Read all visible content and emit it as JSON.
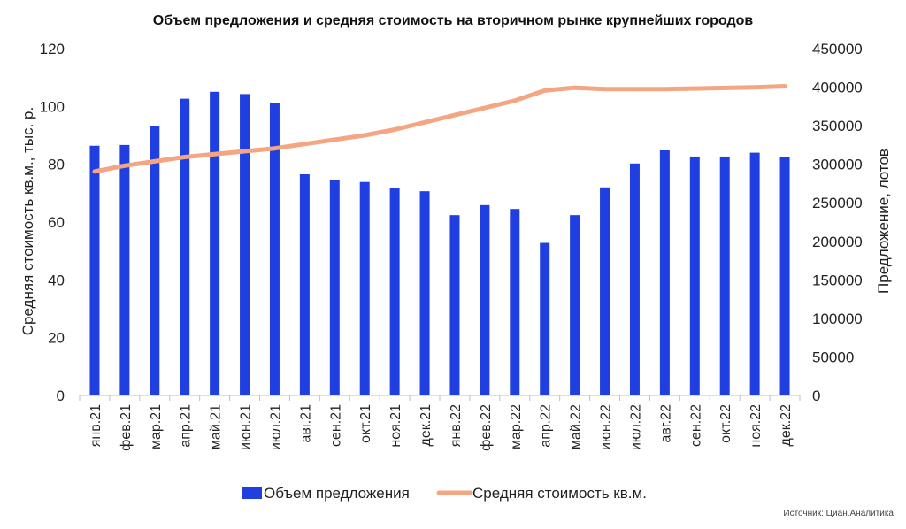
{
  "chart_data": {
    "type": "bar",
    "title": "Объем предложения и средняя стоимость на вторичном рынке крупнейших городов",
    "source": "Источник: Циан.Аналитика",
    "categories": [
      "янв.21",
      "фев.21",
      "мар.21",
      "апр.21",
      "май.21",
      "июн.21",
      "июл.21",
      "авг.21",
      "сен.21",
      "окт.21",
      "ноя.21",
      "дек.21",
      "янв.22",
      "фев.22",
      "мар.22",
      "апр.22",
      "май.22",
      "июн.22",
      "июл.22",
      "авг.22",
      "сен.22",
      "окт.22",
      "ноя.22",
      "дек.22"
    ],
    "y_left": {
      "label": "Средняя стоимость кв.м., тыс. р.",
      "min": 0,
      "max": 120,
      "ticks": [
        "0",
        "20",
        "40",
        "60",
        "80",
        "100",
        "120"
      ]
    },
    "y_right": {
      "label": "Предложение, лотов",
      "min": 0,
      "max": 450000,
      "ticks": [
        "0",
        "50000",
        "100000",
        "150000",
        "200000",
        "250000",
        "300000",
        "350000",
        "400000",
        "450000"
      ]
    },
    "series": [
      {
        "name": "Объем предложения",
        "type": "bar",
        "axis": "right",
        "color": "#1f3fe0",
        "values": [
          324000,
          325000,
          350000,
          385000,
          394000,
          391000,
          379000,
          287000,
          280000,
          277000,
          269000,
          265000,
          234000,
          247000,
          242000,
          198000,
          234000,
          270000,
          301000,
          318000,
          310000,
          310000,
          315000,
          309000
        ]
      },
      {
        "name": "Средняя стоимость кв.м.",
        "type": "line",
        "axis": "left",
        "color": "#f4a582",
        "values": [
          77.5,
          79.5,
          81,
          82.5,
          83.5,
          84.5,
          85.5,
          87,
          88.5,
          90,
          92,
          94.5,
          97,
          99.5,
          102,
          105.5,
          106.5,
          106,
          106,
          106,
          106.2,
          106.4,
          106.6,
          107
        ]
      }
    ],
    "legend": {
      "position": "bottom"
    },
    "grid": false
  }
}
